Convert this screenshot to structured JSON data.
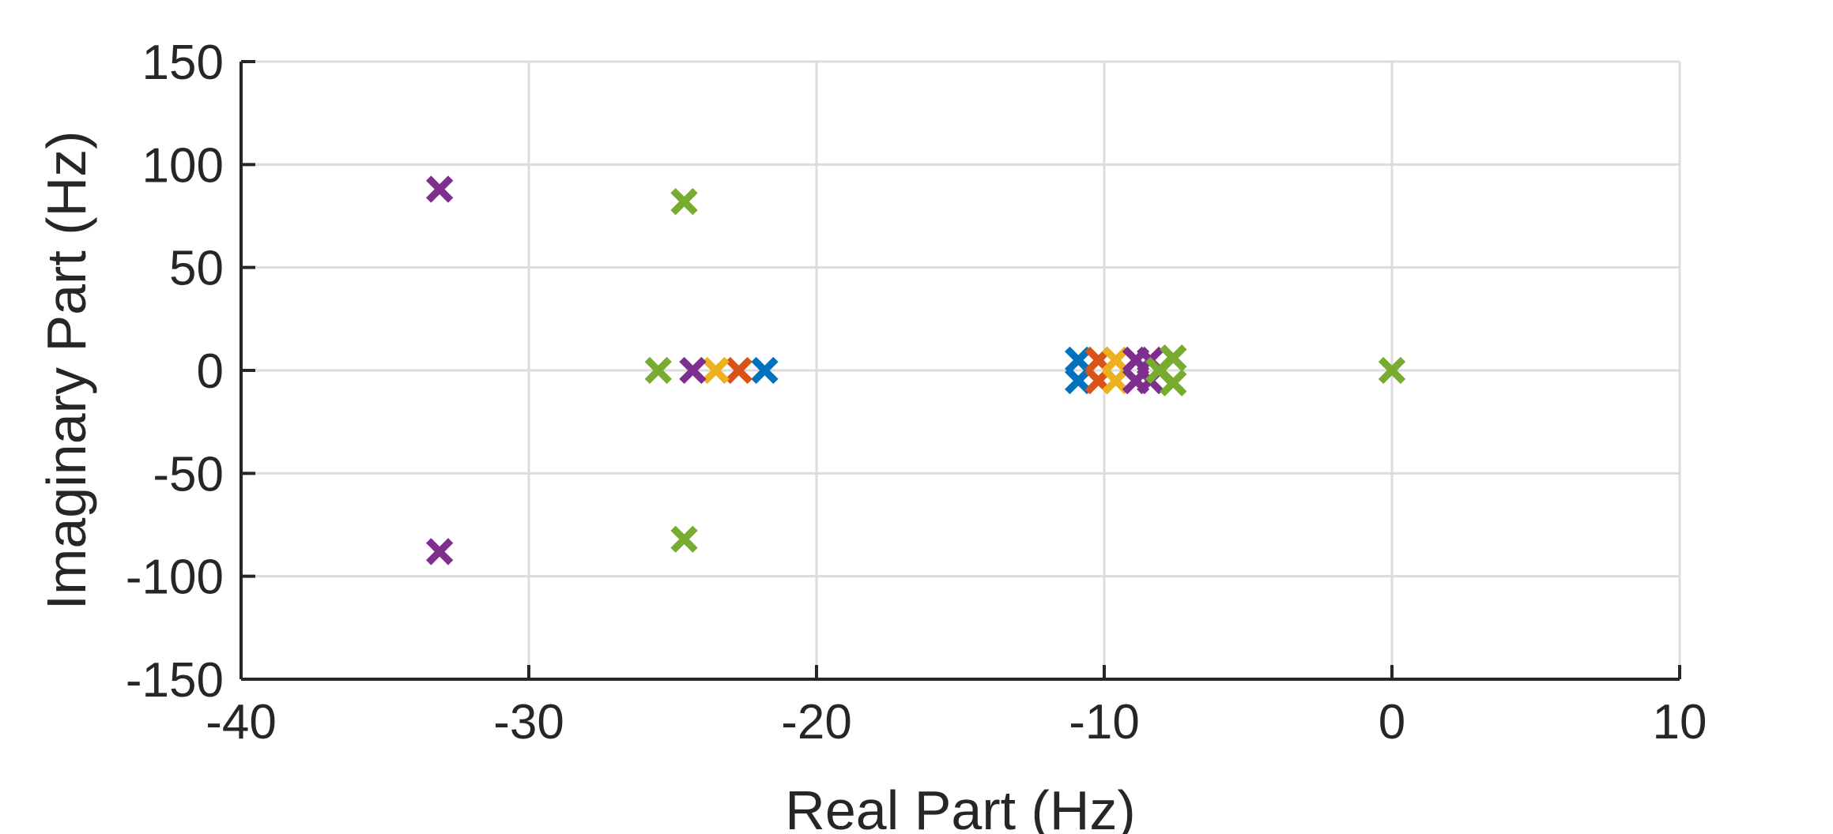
{
  "chart_data": {
    "type": "scatter",
    "xlabel": "Real Part (Hz)",
    "ylabel": "Imaginary Part (Hz)",
    "xlim": [
      -40,
      10
    ],
    "ylim": [
      -150,
      150
    ],
    "xticks": [
      -40,
      -30,
      -20,
      -10,
      0,
      10
    ],
    "yticks": [
      -150,
      -100,
      -50,
      0,
      50,
      100,
      150
    ],
    "xtick_labels": [
      "-40",
      "-30",
      "-20",
      "-10",
      "0",
      "10"
    ],
    "ytick_labels": [
      "-150",
      "-100",
      "-50",
      "0",
      "50",
      "100",
      "150"
    ],
    "grid": true,
    "marker": "x",
    "series": [
      {
        "color": "#0072BD",
        "points": [
          [
            -21.8,
            0
          ],
          [
            -10.9,
            5
          ],
          [
            -10.9,
            -5
          ]
        ]
      },
      {
        "color": "#D95319",
        "points": [
          [
            -22.7,
            0
          ],
          [
            -10.2,
            5
          ],
          [
            -10.2,
            -5
          ]
        ]
      },
      {
        "color": "#EDB120",
        "points": [
          [
            -23.5,
            0
          ],
          [
            -9.6,
            5
          ],
          [
            -9.6,
            -5
          ]
        ]
      },
      {
        "color": "#7E2F8E",
        "points": [
          [
            -33.1,
            88
          ],
          [
            -33.1,
            -88
          ],
          [
            -24.3,
            0
          ],
          [
            -8.9,
            5
          ],
          [
            -8.9,
            -5
          ],
          [
            -8.4,
            5
          ],
          [
            -8.4,
            -5
          ]
        ]
      },
      {
        "color": "#77AC30",
        "points": [
          [
            -24.6,
            82
          ],
          [
            -24.6,
            -82
          ],
          [
            -25.5,
            0
          ],
          [
            -8.1,
            0
          ],
          [
            -7.6,
            6
          ],
          [
            -7.6,
            -6
          ],
          [
            0,
            0
          ]
        ]
      }
    ]
  }
}
